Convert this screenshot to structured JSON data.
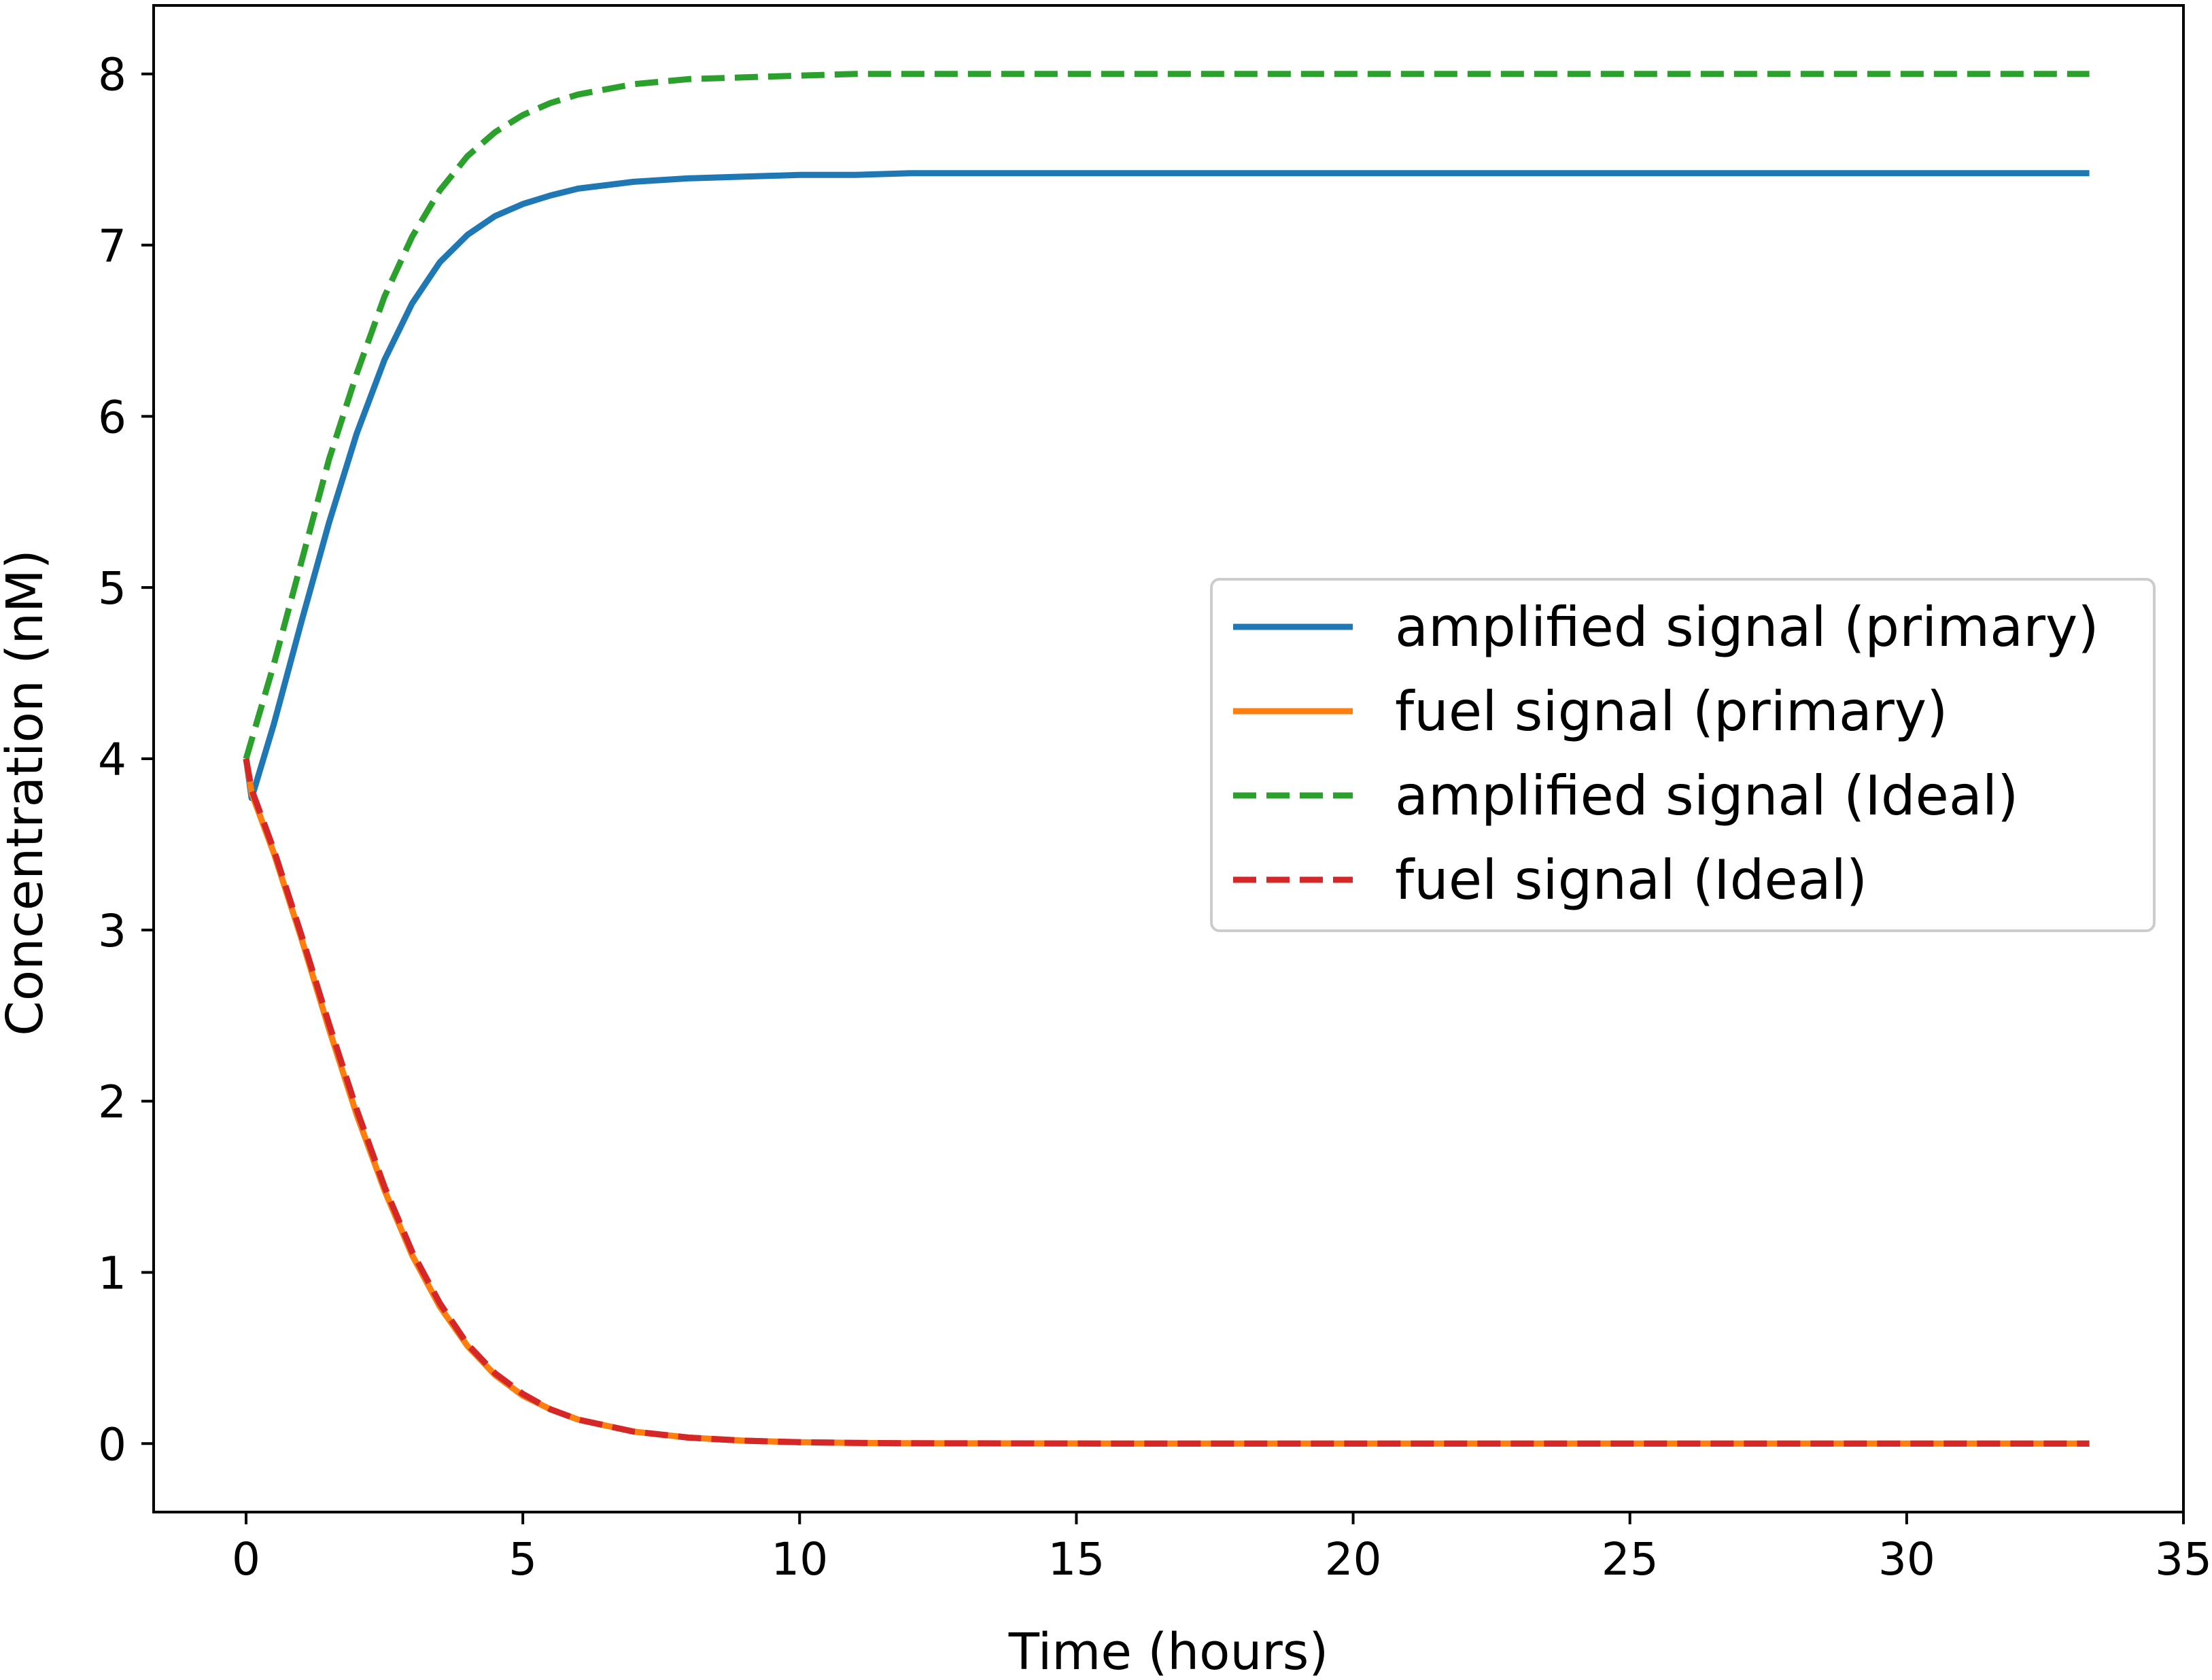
{
  "chart_data": {
    "type": "line",
    "title": "",
    "xlabel": "Time (hours)",
    "ylabel": "Concentration (nM)",
    "xlim": [
      -1.67,
      35
    ],
    "ylim": [
      -0.4,
      8.4
    ],
    "xticks": [
      0,
      5,
      10,
      15,
      20,
      25,
      30,
      35
    ],
    "yticks": [
      0,
      1,
      2,
      3,
      4,
      5,
      6,
      7,
      8
    ],
    "grid": false,
    "legend_position": "center-right",
    "series": [
      {
        "name": "amplified signal (primary)",
        "color": "#1f77b4",
        "style": "solid",
        "x": [
          0,
          0.1,
          0.5,
          1,
          1.5,
          2,
          2.5,
          3,
          3.5,
          4,
          4.5,
          5,
          5.5,
          6,
          7,
          8,
          9,
          10,
          11,
          12,
          14,
          16,
          20,
          25,
          30,
          33.3
        ],
        "y": [
          4.0,
          3.77,
          4.2,
          4.8,
          5.38,
          5.9,
          6.33,
          6.66,
          6.9,
          7.06,
          7.17,
          7.24,
          7.29,
          7.33,
          7.37,
          7.39,
          7.4,
          7.41,
          7.41,
          7.42,
          7.42,
          7.42,
          7.42,
          7.42,
          7.42,
          7.42
        ]
      },
      {
        "name": "fuel signal (primary)",
        "color": "#ff7f0e",
        "style": "solid",
        "x": [
          0,
          0.1,
          0.5,
          1,
          1.5,
          2,
          2.5,
          3,
          3.5,
          4,
          4.5,
          5,
          5.5,
          6,
          7,
          8,
          9,
          10,
          11,
          12,
          14,
          16,
          20,
          25,
          30,
          33.3
        ],
        "y": [
          4.0,
          3.8,
          3.45,
          2.95,
          2.42,
          1.92,
          1.48,
          1.1,
          0.8,
          0.57,
          0.4,
          0.28,
          0.2,
          0.14,
          0.07,
          0.035,
          0.017,
          0.008,
          0.004,
          0.002,
          0.001,
          0,
          0,
          0,
          0,
          0
        ]
      },
      {
        "name": "amplified signal (Ideal)",
        "color": "#2ca02c",
        "style": "dashed",
        "x": [
          0,
          0.5,
          1,
          1.5,
          2,
          2.5,
          3,
          3.5,
          4,
          4.5,
          5,
          5.5,
          6,
          7,
          8,
          9,
          10,
          11,
          12,
          14,
          16,
          20,
          25,
          30,
          33.3
        ],
        "y": [
          4.0,
          4.55,
          5.15,
          5.75,
          6.25,
          6.7,
          7.05,
          7.32,
          7.52,
          7.66,
          7.76,
          7.83,
          7.88,
          7.94,
          7.97,
          7.98,
          7.99,
          8.0,
          8.0,
          8.0,
          8.0,
          8.0,
          8.0,
          8.0,
          8.0
        ]
      },
      {
        "name": "fuel signal (Ideal)",
        "color": "#d62728",
        "style": "dashed",
        "x": [
          0,
          0.1,
          0.5,
          1,
          1.5,
          2,
          2.5,
          3,
          3.5,
          4,
          4.5,
          5,
          5.5,
          6,
          7,
          8,
          9,
          10,
          11,
          12,
          14,
          16,
          20,
          25,
          30,
          33.3
        ],
        "y": [
          4.0,
          3.82,
          3.47,
          2.97,
          2.45,
          1.95,
          1.5,
          1.12,
          0.82,
          0.58,
          0.41,
          0.29,
          0.2,
          0.14,
          0.07,
          0.035,
          0.017,
          0.008,
          0.004,
          0.002,
          0.001,
          0,
          0,
          0,
          0,
          0
        ]
      }
    ]
  }
}
